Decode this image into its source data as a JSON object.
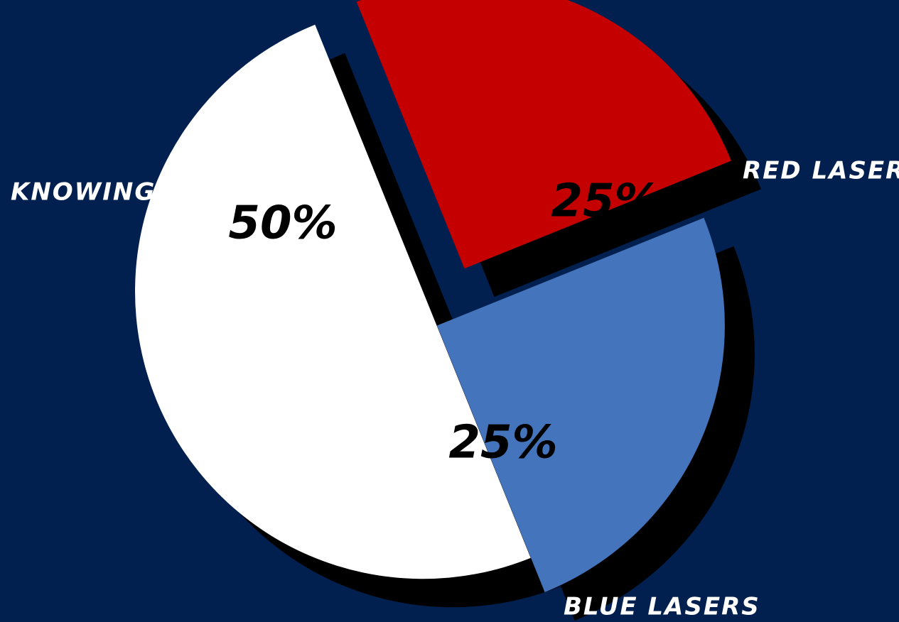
{
  "chart_data": {
    "type": "pie",
    "categories": [
      "KNOWING",
      "RED LASERS",
      "BLUE LASERS"
    ],
    "values": [
      50,
      25,
      25
    ],
    "value_labels": [
      "50%",
      "25%",
      "25%"
    ],
    "colors": [
      "#ffffff",
      "#c40000",
      "#4474bb"
    ],
    "background_color": "#02204f",
    "shadow_color": "#000000",
    "exploded": true,
    "legend": "none"
  }
}
